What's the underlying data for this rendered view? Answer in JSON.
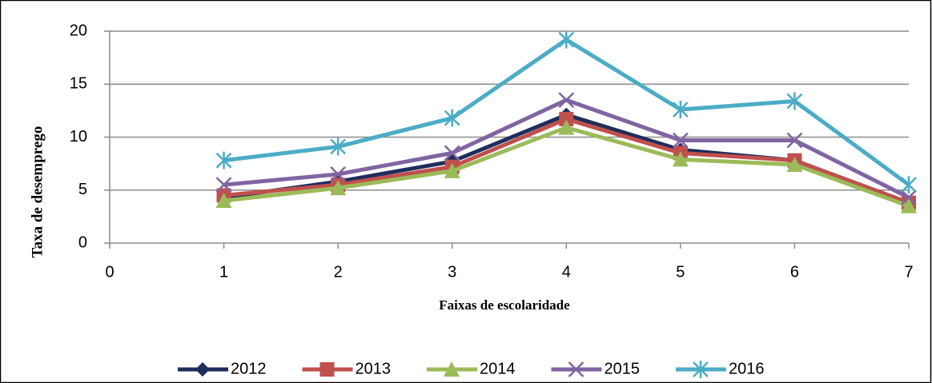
{
  "chart_data": {
    "type": "line",
    "x_label": "Faixas de escolaridade",
    "y_label": "Taxa de desemprego",
    "x": [
      1,
      2,
      3,
      4,
      5,
      6,
      7
    ],
    "series": [
      {
        "name": "2012",
        "color": "#1f2d5c",
        "marker": "diamond",
        "values": [
          4.3,
          5.8,
          7.7,
          12.1,
          8.8,
          7.8,
          3.8
        ]
      },
      {
        "name": "2013",
        "color": "#c0504d",
        "marker": "square",
        "values": [
          4.5,
          5.5,
          7.2,
          11.7,
          8.5,
          7.8,
          3.8
        ]
      },
      {
        "name": "2014",
        "color": "#9bbb59",
        "marker": "triangle",
        "values": [
          4.0,
          5.2,
          6.8,
          10.9,
          7.9,
          7.4,
          3.5
        ]
      },
      {
        "name": "2015",
        "color": "#8064a2",
        "marker": "cross",
        "values": [
          5.5,
          6.5,
          8.5,
          13.5,
          9.7,
          9.7,
          4.3
        ]
      },
      {
        "name": "2016",
        "color": "#4bacc6",
        "marker": "star",
        "values": [
          7.8,
          9.1,
          11.8,
          19.2,
          12.6,
          13.4,
          5.5
        ]
      }
    ],
    "xlim": [
      0,
      7
    ],
    "xticks": [
      0,
      1,
      2,
      3,
      4,
      5,
      6,
      7
    ],
    "ylim": [
      0,
      20
    ],
    "yticks": [
      0,
      5,
      10,
      15,
      20
    ],
    "grid": true,
    "legend": "bottom"
  }
}
